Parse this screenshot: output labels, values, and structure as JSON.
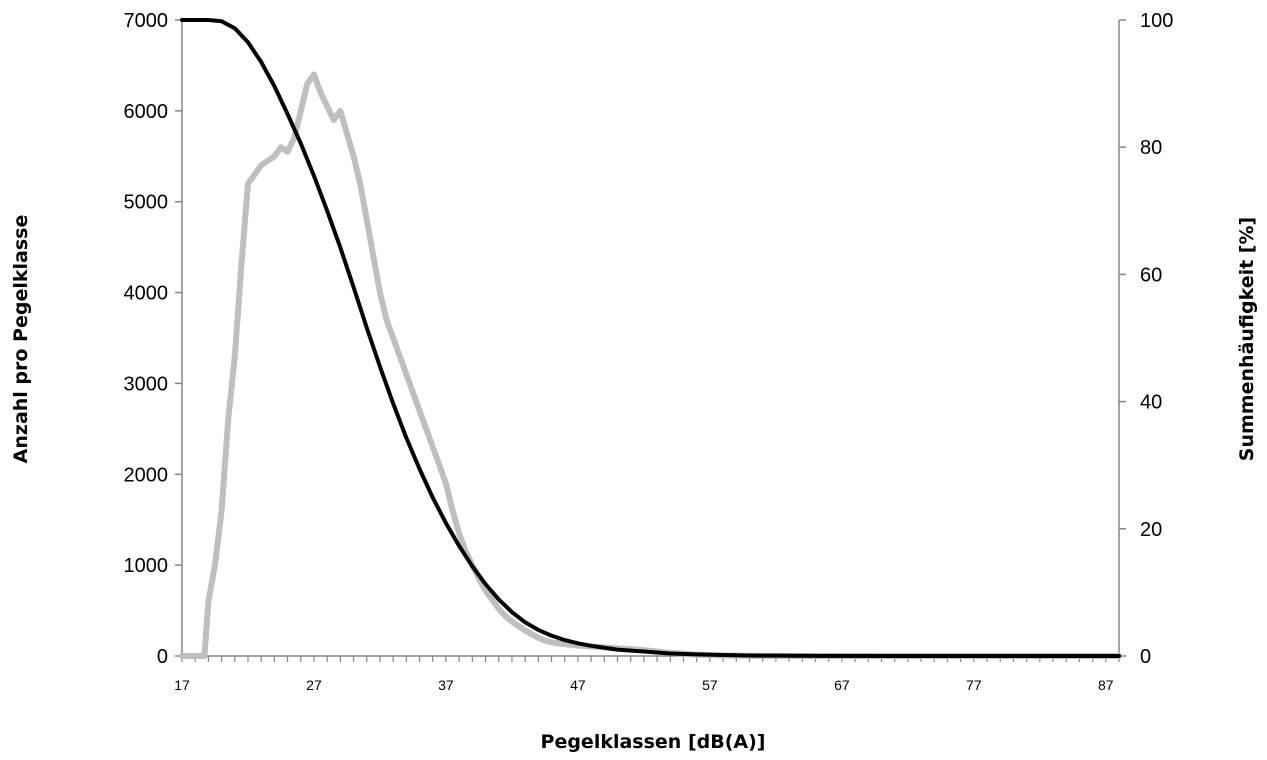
{
  "chart_data": {
    "type": "line",
    "xlabel": "Pegelklassen [dB(A)]",
    "ylabel_left": "Anzahl pro Pegelklasse",
    "ylabel_right": "Summenhäufigkeit [%]",
    "xlim": [
      17,
      88
    ],
    "x_ticks": [
      17,
      27,
      37,
      47,
      57,
      67,
      77,
      87
    ],
    "ylim_left": [
      0,
      7000
    ],
    "y_ticks_left": [
      0,
      1000,
      2000,
      3000,
      4000,
      5000,
      6000,
      7000
    ],
    "ylim_right": [
      0,
      100
    ],
    "y_ticks_right": [
      0,
      20,
      40,
      60,
      80,
      100
    ],
    "grid": false,
    "legend": "none",
    "series": [
      {
        "axis": "left",
        "color": "#bfbfbf",
        "x": [
          17,
          18.7,
          19,
          19.5,
          20,
          20.5,
          21,
          21.5,
          22,
          22.5,
          23,
          23.5,
          24,
          24.5,
          25,
          25.5,
          26,
          26.5,
          27,
          27.5,
          28,
          28.5,
          29,
          29.5,
          30,
          30.5,
          31,
          31.5,
          32,
          32.5,
          33,
          33.5,
          34,
          34.5,
          35,
          35.5,
          36,
          36.5,
          37,
          37.5,
          38,
          38.5,
          39,
          39.5,
          40,
          40.5,
          41,
          41.5,
          42,
          42.5,
          43,
          43.5,
          44,
          44.5,
          45,
          46,
          47,
          48,
          49,
          50,
          51,
          52,
          53,
          54,
          55,
          56,
          57,
          58,
          59,
          60,
          61,
          62,
          63,
          64,
          65,
          66,
          67,
          70,
          75,
          80,
          85,
          88
        ],
        "values": [
          0,
          0,
          600,
          1000,
          1600,
          2600,
          3300,
          4300,
          5200,
          5300,
          5400,
          5450,
          5500,
          5600,
          5550,
          5700,
          6000,
          6300,
          6400,
          6200,
          6050,
          5900,
          6000,
          5750,
          5500,
          5200,
          4800,
          4400,
          4000,
          3700,
          3500,
          3300,
          3100,
          2900,
          2700,
          2500,
          2300,
          2100,
          1900,
          1600,
          1350,
          1150,
          1000,
          850,
          720,
          620,
          520,
          440,
          380,
          330,
          280,
          240,
          200,
          170,
          150,
          130,
          115,
          105,
          95,
          85,
          75,
          65,
          50,
          35,
          25,
          15,
          10,
          6,
          4,
          2,
          1,
          1,
          0,
          0,
          0,
          0,
          0,
          0,
          0,
          0,
          0,
          0
        ]
      },
      {
        "axis": "right",
        "color": "#000000",
        "x": [
          17,
          19,
          20,
          21,
          22,
          23,
          24,
          25,
          26,
          27,
          28,
          29,
          30,
          31,
          32,
          33,
          34,
          35,
          36,
          37,
          38,
          39,
          40,
          41,
          42,
          43,
          44,
          45,
          46,
          47,
          48,
          49,
          50,
          52,
          54,
          56,
          58,
          60,
          62,
          65,
          70,
          75,
          80,
          85,
          88
        ],
        "values": [
          100,
          100,
          99.8,
          98.7,
          96.5,
          93.4,
          89.6,
          85.2,
          80.6,
          75.5,
          70.0,
          64.2,
          58.0,
          51.6,
          45.5,
          39.7,
          34.3,
          29.4,
          24.9,
          20.9,
          17.3,
          14.1,
          11.3,
          8.9,
          6.9,
          5.3,
          4.1,
          3.2,
          2.5,
          2.0,
          1.6,
          1.3,
          1.0,
          0.7,
          0.4,
          0.25,
          0.15,
          0.08,
          0.05,
          0.02,
          0,
          0,
          0,
          0,
          0
        ]
      }
    ]
  }
}
